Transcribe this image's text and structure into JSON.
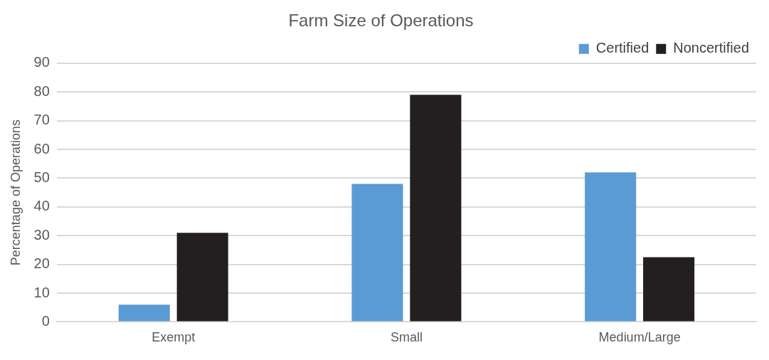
{
  "chart_data": {
    "type": "bar",
    "title": "Farm Size of Operations",
    "ylabel": "Percentage of Operations",
    "categories": [
      "Exempt",
      "Small",
      "Medium/Large"
    ],
    "series": [
      {
        "name": "Certified",
        "color": "#5b9bd5",
        "values": [
          6,
          48,
          52
        ]
      },
      {
        "name": "Noncertified",
        "color": "#231f20",
        "values": [
          31,
          79,
          22.5
        ]
      }
    ],
    "ylim": [
      0,
      90
    ],
    "yticks": [
      0,
      10,
      20,
      30,
      40,
      50,
      60,
      70,
      80,
      90
    ],
    "grid": "y",
    "legend": "top right"
  }
}
